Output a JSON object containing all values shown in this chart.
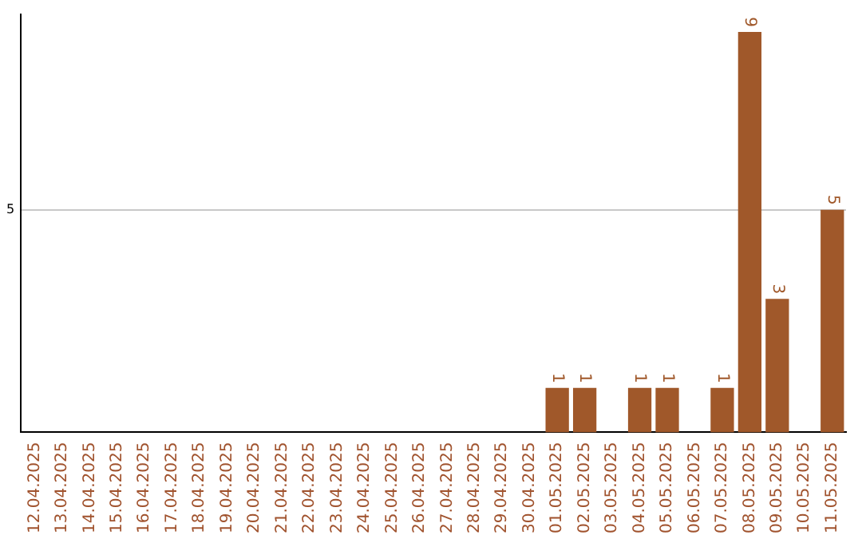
{
  "chart_data": {
    "type": "bar",
    "categories": [
      "12.04.2025",
      "13.04.2025",
      "14.04.2025",
      "15.04.2025",
      "16.04.2025",
      "17.04.2025",
      "18.04.2025",
      "19.04.2025",
      "20.04.2025",
      "21.04.2025",
      "22.04.2025",
      "23.04.2025",
      "24.04.2025",
      "25.04.2025",
      "26.04.2025",
      "27.04.2025",
      "28.04.2025",
      "29.04.2025",
      "30.04.2025",
      "01.05.2025",
      "02.05.2025",
      "03.05.2025",
      "04.05.2025",
      "05.05.2025",
      "06.05.2025",
      "07.05.2025",
      "08.05.2025",
      "09.05.2025",
      "10.05.2025",
      "11.05.2025"
    ],
    "values": [
      null,
      null,
      null,
      null,
      null,
      null,
      null,
      null,
      null,
      null,
      null,
      null,
      null,
      null,
      null,
      null,
      null,
      null,
      null,
      1,
      1,
      null,
      1,
      1,
      null,
      1,
      9,
      3,
      null,
      5
    ],
    "color": "#a0582a",
    "ylim": [
      0,
      9.4
    ],
    "yticks": [
      5
    ],
    "grid": "y",
    "data_labels": true,
    "legend": false
  }
}
